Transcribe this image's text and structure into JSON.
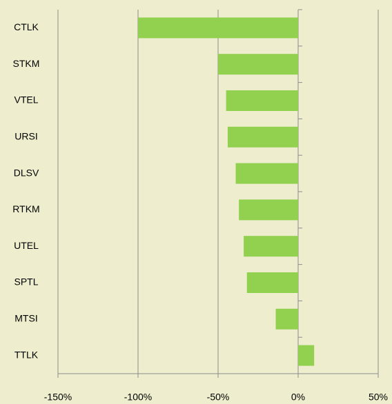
{
  "chart_data": {
    "type": "bar",
    "orientation": "horizontal",
    "categories": [
      "CTLK",
      "STKM",
      "VTEL",
      "URSI",
      "DLSV",
      "RTKM",
      "UTEL",
      "SPTL",
      "MTSI",
      "TTLK"
    ],
    "values": [
      -100,
      -50,
      -45,
      -44,
      -39,
      -37,
      -34,
      -32,
      -14,
      10
    ],
    "color": "#92d050",
    "xlim": [
      -150,
      50
    ],
    "xticks": [
      {
        "value": -150,
        "label": "-150%"
      },
      {
        "value": -100,
        "label": "-100%"
      },
      {
        "value": -50,
        "label": "-50%"
      },
      {
        "value": 0,
        "label": "0%"
      },
      {
        "value": 50,
        "label": "50%"
      }
    ],
    "grid": true
  }
}
